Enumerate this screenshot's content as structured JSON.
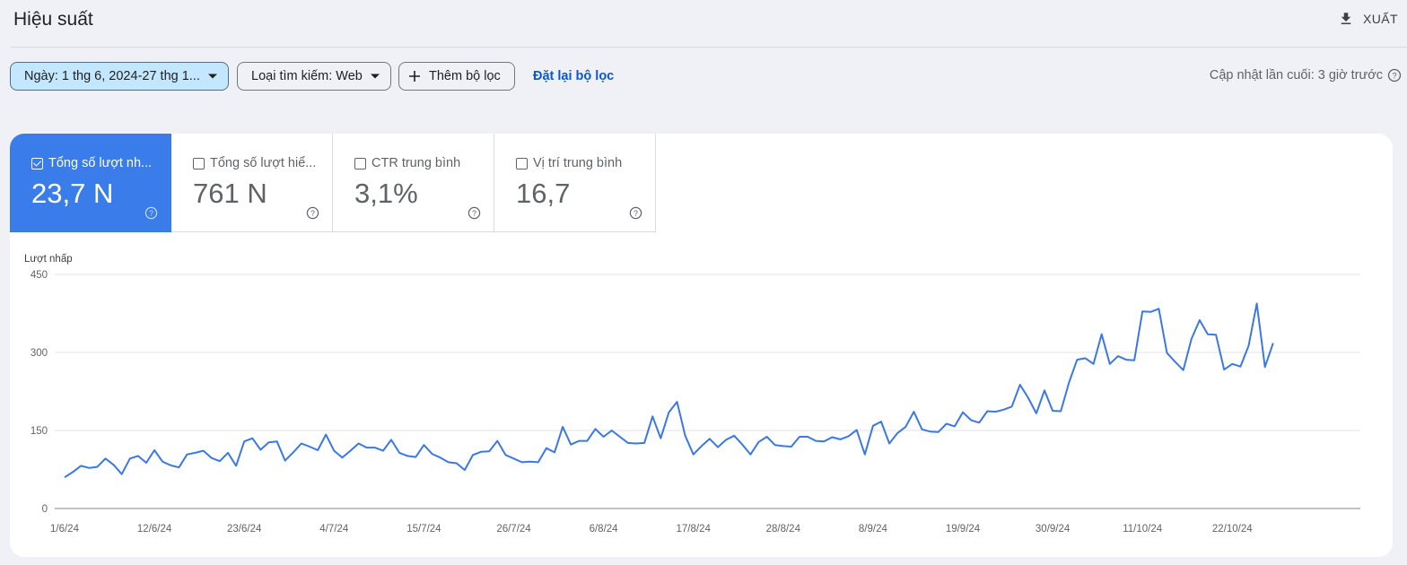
{
  "header": {
    "title": "Hiệu suất",
    "export_label": "XUẤT",
    "export_icon": "download-icon"
  },
  "filters": {
    "date_label": "Ngày: 1 thg 6, 2024-27 thg 1...",
    "search_type_label": "Loại tìm kiếm: Web",
    "add_filter_label": "Thêm bộ lọc",
    "reset_label": "Đặt lại bộ lọc",
    "last_updated": "Cập nhật lần cuối: 3 giờ trước"
  },
  "metrics": [
    {
      "label": "Tổng số lượt nh...",
      "value": "23,7 N",
      "checked": true
    },
    {
      "label": "Tổng số lượt hiể...",
      "value": "761 N",
      "checked": false
    },
    {
      "label": "CTR trung bình",
      "value": "3,1%",
      "checked": false
    },
    {
      "label": "Vị trí trung bình",
      "value": "16,7",
      "checked": false
    }
  ],
  "colors": {
    "accent": "#3a7ce9",
    "line": "#3b78e7",
    "link": "#0b57d0",
    "chip_selected": "#c2e7ff"
  },
  "chart_data": {
    "type": "line",
    "ylabel": "Lượt nhấp",
    "ylim": [
      0,
      450
    ],
    "yticks": [
      0,
      150,
      300,
      450
    ],
    "xtick_labels": [
      "1/6/24",
      "12/6/24",
      "23/6/24",
      "4/7/24",
      "15/7/24",
      "26/7/24",
      "6/8/24",
      "17/8/24",
      "28/8/24",
      "8/9/24",
      "19/9/24",
      "30/9/24",
      "11/10/24",
      "22/10/24"
    ],
    "xtick_day_index": [
      0,
      11,
      22,
      33,
      44,
      55,
      66,
      77,
      88,
      99,
      110,
      121,
      132,
      143
    ],
    "grid": true,
    "series": [
      {
        "values": [
          60,
          70,
          82,
          78,
          80,
          96,
          84,
          66,
          96,
          101,
          88,
          112,
          90,
          83,
          79,
          104,
          107,
          111,
          97,
          91,
          107,
          82,
          129,
          135,
          113,
          127,
          129,
          92,
          108,
          125,
          119,
          112,
          142,
          111,
          98,
          111,
          125,
          117,
          117,
          111,
          132,
          107,
          101,
          99,
          122,
          105,
          98,
          89,
          87,
          74,
          103,
          109,
          110,
          130,
          103,
          96,
          89,
          90,
          89,
          116,
          108,
          157,
          123,
          130,
          130,
          153,
          138,
          150,
          138,
          126,
          125,
          126,
          177,
          135,
          185,
          205,
          140,
          104,
          120,
          134,
          118,
          132,
          140,
          123,
          104,
          128,
          138,
          122,
          120,
          119,
          138,
          138,
          130,
          129,
          137,
          133,
          139,
          151,
          104,
          159,
          167,
          125,
          145,
          157,
          186,
          152,
          148,
          147,
          163,
          158,
          185,
          170,
          165,
          187,
          186,
          190,
          196,
          238,
          213,
          183,
          227,
          188,
          187,
          242,
          286,
          289,
          278,
          335,
          278,
          293,
          286,
          285,
          379,
          378,
          384,
          299,
          282,
          266,
          326,
          362,
          335,
          334,
          267,
          278,
          273,
          313,
          394,
          272,
          318
        ]
      }
    ]
  }
}
